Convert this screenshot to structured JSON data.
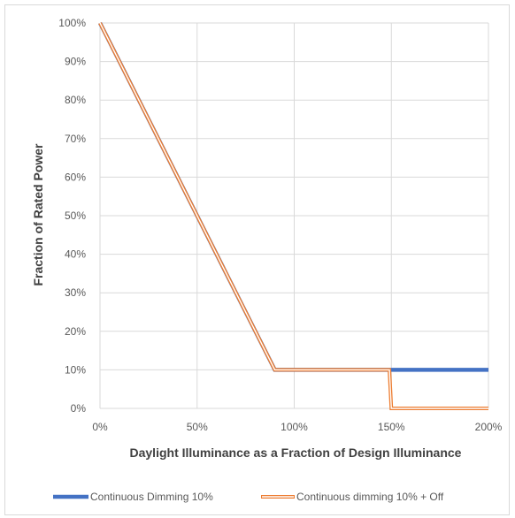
{
  "chart_data": {
    "type": "line",
    "xlabel": "Daylight Illuminance as a Fraction of Design Illuminance",
    "ylabel": "Fraction of Rated Power",
    "x_ticks": [
      "0%",
      "50%",
      "100%",
      "150%",
      "200%"
    ],
    "y_ticks": [
      "0%",
      "10%",
      "20%",
      "30%",
      "40%",
      "50%",
      "60%",
      "70%",
      "80%",
      "90%",
      "100%"
    ],
    "xlim": [
      0,
      2
    ],
    "ylim": [
      0,
      1
    ],
    "grid": true,
    "legend_position": "bottom",
    "series": [
      {
        "name": "Continuous Dimming 10%",
        "color": "#4472c4",
        "style": "solid",
        "x": [
          0,
          0.9,
          1.49,
          2.0
        ],
        "y": [
          1.0,
          0.1,
          0.1,
          0.1
        ]
      },
      {
        "name": "Continuous dimming 10% + Off",
        "color": "#ed7d31",
        "style": "double",
        "x": [
          0,
          0.9,
          1.49,
          1.5,
          2.0
        ],
        "y": [
          1.0,
          0.1,
          0.1,
          0.0,
          0.0
        ]
      }
    ]
  }
}
